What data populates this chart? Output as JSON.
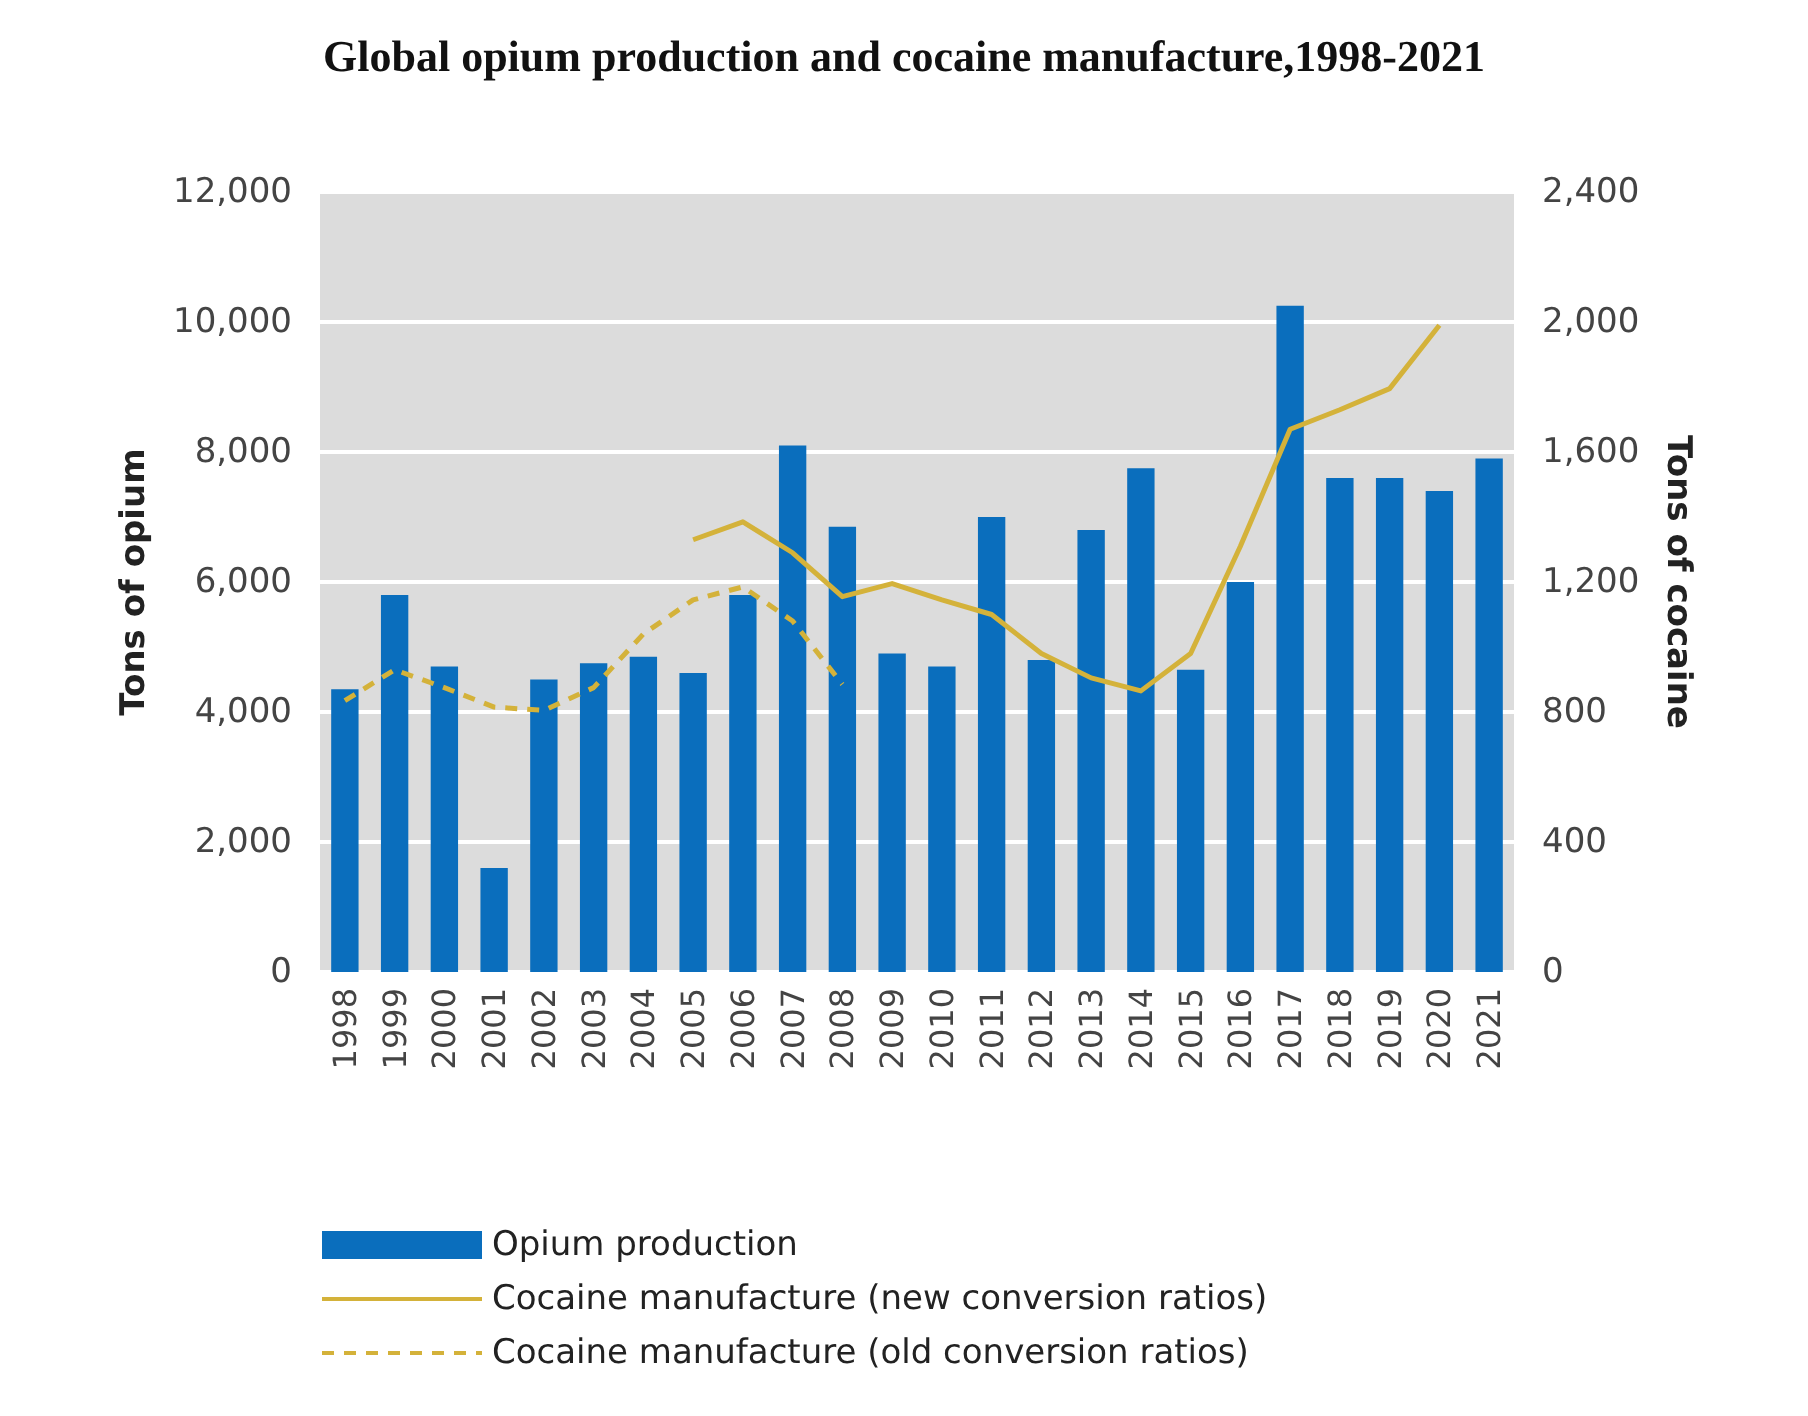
{
  "chart_data": {
    "type": "bar",
    "title": "Global opium production and cocaine manufacture,1998-2021",
    "categories": [
      "1998",
      "1999",
      "2000",
      "2001",
      "2002",
      "2003",
      "2004",
      "2005",
      "2006",
      "2007",
      "2008",
      "2009",
      "2010",
      "2011",
      "2012",
      "2013",
      "2014",
      "2015",
      "2016",
      "2017",
      "2018",
      "2019",
      "2020",
      "2021"
    ],
    "ylabel": "Tons of opium",
    "y2label": "Tons of cocaine",
    "ylim": [
      0,
      12000
    ],
    "yticks": [
      {
        "value": 0,
        "label": "0"
      },
      {
        "value": 2000,
        "label": "2,000"
      },
      {
        "value": 4000,
        "label": "4,000"
      },
      {
        "value": 6000,
        "label": "6,000"
      },
      {
        "value": 8000,
        "label": "8,000"
      },
      {
        "value": 10000,
        "label": "10,000"
      },
      {
        "value": 12000,
        "label": "12,000"
      }
    ],
    "y2lim": [
      0,
      2400
    ],
    "y2ticks": [
      {
        "value": 0,
        "label": "0"
      },
      {
        "value": 400,
        "label": "400"
      },
      {
        "value": 800,
        "label": "800"
      },
      {
        "value": 1200,
        "label": "1,200"
      },
      {
        "value": 1600,
        "label": "1,600"
      },
      {
        "value": 2000,
        "label": "2,000"
      },
      {
        "value": 2400,
        "label": "2,400"
      }
    ],
    "grid": "y",
    "legend": "bottom",
    "series": [
      {
        "name": "Opium production",
        "color": "#0a6ebd",
        "values": [
          4350,
          5800,
          4700,
          1600,
          4500,
          4750,
          4850,
          4600,
          5800,
          8100,
          6850,
          4900,
          4700,
          7000,
          4800,
          6800,
          7750,
          4650,
          6000,
          10250,
          7600,
          7600,
          7400,
          7900
        ]
      },
      {
        "name": "Cocaine manufacture (new conversion ratios)",
        "type": "line",
        "axis": "y2",
        "color": "#d4b23a",
        "line_style": "solid",
        "values": [
          null,
          null,
          null,
          null,
          null,
          null,
          null,
          1330,
          1385,
          1290,
          1155,
          1195,
          1145,
          1100,
          980,
          905,
          865,
          980,
          1310,
          1670,
          1730,
          1795,
          1990,
          null
        ]
      },
      {
        "name": "Cocaine manufacture (old conversion ratios)",
        "type": "line",
        "axis": "y2",
        "color": "#d4b23a",
        "line_style": "dashed",
        "values": [
          835,
          930,
          875,
          815,
          805,
          875,
          1040,
          1145,
          1185,
          1080,
          885,
          null,
          null,
          null,
          null,
          null,
          null,
          null,
          null,
          null,
          null,
          null,
          null,
          null
        ]
      }
    ]
  }
}
